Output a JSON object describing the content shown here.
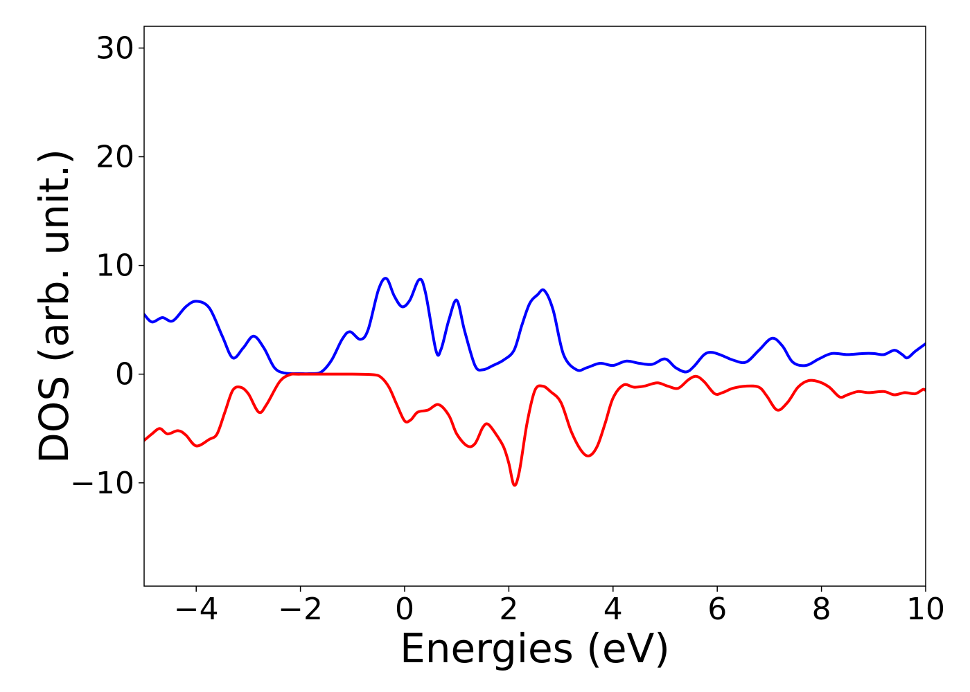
{
  "chart_data": {
    "type": "line",
    "xlabel": "Energies (eV)",
    "ylabel": "DOS (arb. unit.)",
    "xlim": [
      -5,
      10
    ],
    "ylim": [
      -19.5,
      32
    ],
    "grid": false,
    "x_ticks": [
      {
        "value": -4,
        "label": "−4"
      },
      {
        "value": -2,
        "label": "−2"
      },
      {
        "value": 0,
        "label": "0"
      },
      {
        "value": 2,
        "label": "2"
      },
      {
        "value": 4,
        "label": "4"
      },
      {
        "value": 6,
        "label": "6"
      },
      {
        "value": 8,
        "label": "8"
      },
      {
        "value": 10,
        "label": "10"
      }
    ],
    "y_ticks": [
      {
        "value": -10,
        "label": "−10"
      },
      {
        "value": 0,
        "label": "0"
      },
      {
        "value": 10,
        "label": "10"
      },
      {
        "value": 20,
        "label": "20"
      },
      {
        "value": 30,
        "label": "30"
      }
    ],
    "series": [
      {
        "color": "#0000ff",
        "points": [
          [
            -5.0,
            5.5
          ],
          [
            -4.85,
            4.8
          ],
          [
            -4.65,
            5.2
          ],
          [
            -4.45,
            4.9
          ],
          [
            -4.2,
            6.2
          ],
          [
            -4.0,
            6.7
          ],
          [
            -3.75,
            6.1
          ],
          [
            -3.5,
            3.5
          ],
          [
            -3.3,
            1.5
          ],
          [
            -3.1,
            2.4
          ],
          [
            -2.9,
            3.5
          ],
          [
            -2.7,
            2.4
          ],
          [
            -2.5,
            0.6
          ],
          [
            -2.3,
            0.1
          ],
          [
            -2.0,
            0.05
          ],
          [
            -1.8,
            0.05
          ],
          [
            -1.6,
            0.2
          ],
          [
            -1.4,
            1.3
          ],
          [
            -1.2,
            3.2
          ],
          [
            -1.05,
            3.9
          ],
          [
            -0.85,
            3.2
          ],
          [
            -0.7,
            4.1
          ],
          [
            -0.5,
            7.8
          ],
          [
            -0.35,
            8.8
          ],
          [
            -0.2,
            7.2
          ],
          [
            -0.05,
            6.2
          ],
          [
            0.1,
            6.8
          ],
          [
            0.28,
            8.7
          ],
          [
            0.4,
            7.5
          ],
          [
            0.6,
            2.2
          ],
          [
            0.7,
            2.3
          ],
          [
            0.85,
            5.0
          ],
          [
            1.0,
            6.8
          ],
          [
            1.15,
            4.0
          ],
          [
            1.35,
            0.8
          ],
          [
            1.5,
            0.4
          ],
          [
            1.7,
            0.8
          ],
          [
            1.9,
            1.3
          ],
          [
            2.1,
            2.2
          ],
          [
            2.25,
            4.5
          ],
          [
            2.4,
            6.5
          ],
          [
            2.55,
            7.3
          ],
          [
            2.68,
            7.7
          ],
          [
            2.85,
            5.9
          ],
          [
            3.05,
            1.8
          ],
          [
            3.3,
            0.4
          ],
          [
            3.5,
            0.6
          ],
          [
            3.75,
            1.0
          ],
          [
            4.0,
            0.8
          ],
          [
            4.25,
            1.2
          ],
          [
            4.5,
            1.0
          ],
          [
            4.75,
            0.9
          ],
          [
            5.0,
            1.4
          ],
          [
            5.2,
            0.6
          ],
          [
            5.4,
            0.2
          ],
          [
            5.55,
            0.7
          ],
          [
            5.75,
            1.8
          ],
          [
            5.9,
            2.0
          ],
          [
            6.1,
            1.7
          ],
          [
            6.3,
            1.3
          ],
          [
            6.55,
            1.1
          ],
          [
            6.8,
            2.2
          ],
          [
            7.05,
            3.3
          ],
          [
            7.25,
            2.6
          ],
          [
            7.45,
            1.1
          ],
          [
            7.7,
            0.8
          ],
          [
            7.95,
            1.4
          ],
          [
            8.2,
            1.9
          ],
          [
            8.5,
            1.8
          ],
          [
            8.8,
            1.9
          ],
          [
            9.0,
            1.9
          ],
          [
            9.2,
            1.8
          ],
          [
            9.4,
            2.2
          ],
          [
            9.55,
            1.8
          ],
          [
            9.65,
            1.5
          ],
          [
            9.8,
            2.1
          ],
          [
            10.0,
            2.8
          ]
        ]
      },
      {
        "color": "#ff0000",
        "points": [
          [
            -5.0,
            -6.1
          ],
          [
            -4.85,
            -5.5
          ],
          [
            -4.7,
            -5.0
          ],
          [
            -4.55,
            -5.5
          ],
          [
            -4.35,
            -5.2
          ],
          [
            -4.2,
            -5.6
          ],
          [
            -4.0,
            -6.6
          ],
          [
            -3.75,
            -6.0
          ],
          [
            -3.6,
            -5.5
          ],
          [
            -3.45,
            -3.5
          ],
          [
            -3.3,
            -1.5
          ],
          [
            -3.15,
            -1.2
          ],
          [
            -3.0,
            -1.8
          ],
          [
            -2.8,
            -3.5
          ],
          [
            -2.65,
            -2.8
          ],
          [
            -2.4,
            -0.7
          ],
          [
            -2.2,
            -0.05
          ],
          [
            -2.0,
            0.0
          ],
          [
            -1.0,
            0.0
          ],
          [
            -0.6,
            -0.05
          ],
          [
            -0.45,
            -0.3
          ],
          [
            -0.3,
            -1.2
          ],
          [
            -0.15,
            -2.8
          ],
          [
            0.0,
            -4.3
          ],
          [
            0.12,
            -4.2
          ],
          [
            0.25,
            -3.5
          ],
          [
            0.45,
            -3.3
          ],
          [
            0.65,
            -2.8
          ],
          [
            0.85,
            -3.8
          ],
          [
            1.0,
            -5.5
          ],
          [
            1.2,
            -6.6
          ],
          [
            1.35,
            -6.4
          ],
          [
            1.5,
            -4.9
          ],
          [
            1.6,
            -4.6
          ],
          [
            1.75,
            -5.5
          ],
          [
            1.9,
            -6.7
          ],
          [
            2.0,
            -8.2
          ],
          [
            2.1,
            -10.2
          ],
          [
            2.2,
            -9.0
          ],
          [
            2.35,
            -4.5
          ],
          [
            2.5,
            -1.5
          ],
          [
            2.65,
            -1.1
          ],
          [
            2.8,
            -1.6
          ],
          [
            3.0,
            -2.6
          ],
          [
            3.2,
            -5.3
          ],
          [
            3.4,
            -7.1
          ],
          [
            3.55,
            -7.5
          ],
          [
            3.7,
            -6.6
          ],
          [
            3.85,
            -4.5
          ],
          [
            4.0,
            -2.2
          ],
          [
            4.2,
            -1.0
          ],
          [
            4.4,
            -1.2
          ],
          [
            4.6,
            -1.1
          ],
          [
            4.85,
            -0.8
          ],
          [
            5.05,
            -1.1
          ],
          [
            5.25,
            -1.3
          ],
          [
            5.45,
            -0.5
          ],
          [
            5.6,
            -0.2
          ],
          [
            5.75,
            -0.7
          ],
          [
            5.95,
            -1.8
          ],
          [
            6.1,
            -1.7
          ],
          [
            6.3,
            -1.3
          ],
          [
            6.55,
            -1.1
          ],
          [
            6.8,
            -1.2
          ],
          [
            6.95,
            -2.0
          ],
          [
            7.15,
            -3.3
          ],
          [
            7.35,
            -2.6
          ],
          [
            7.55,
            -1.2
          ],
          [
            7.75,
            -0.6
          ],
          [
            7.95,
            -0.7
          ],
          [
            8.15,
            -1.2
          ],
          [
            8.35,
            -2.1
          ],
          [
            8.5,
            -1.9
          ],
          [
            8.7,
            -1.6
          ],
          [
            8.9,
            -1.7
          ],
          [
            9.2,
            -1.6
          ],
          [
            9.4,
            -1.9
          ],
          [
            9.6,
            -1.7
          ],
          [
            9.8,
            -1.8
          ],
          [
            9.95,
            -1.4
          ],
          [
            10.0,
            -1.5
          ]
        ]
      }
    ]
  }
}
